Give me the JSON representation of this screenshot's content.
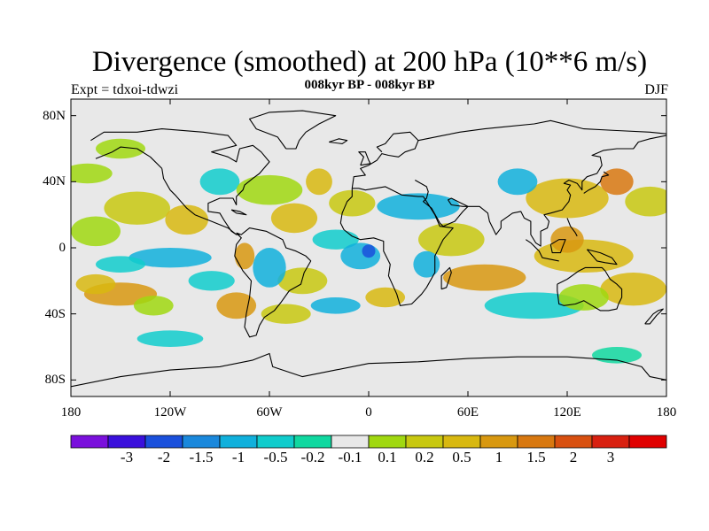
{
  "title": "Divergence (smoothed) at 200 hPa (10**6 m/s)",
  "subtitle": "008kyr BP - 008kyr BP",
  "experiment": "Expt = tdxoi-tdwzi",
  "season": "DJF",
  "map": {
    "projection": "cylindrical equidistant",
    "lon_range": [
      -180,
      180
    ],
    "lat_range": [
      -90,
      90
    ],
    "land_color": "#e8e8e8",
    "coastline_color": "#000000",
    "lat_ticks": [
      {
        "value": 80,
        "label": "80N"
      },
      {
        "value": 40,
        "label": "40N"
      },
      {
        "value": 0,
        "label": "0"
      },
      {
        "value": -40,
        "label": "40S"
      },
      {
        "value": -80,
        "label": "80S"
      }
    ],
    "lon_ticks": [
      {
        "value": -180,
        "label": "180"
      },
      {
        "value": -120,
        "label": "120W"
      },
      {
        "value": -60,
        "label": "60W"
      },
      {
        "value": 0,
        "label": "0"
      },
      {
        "value": 60,
        "label": "60E"
      },
      {
        "value": 120,
        "label": "120E"
      },
      {
        "value": 180,
        "label": "180"
      }
    ]
  },
  "colorbar": {
    "colors": [
      "#7a10dc",
      "#3a10dc",
      "#1a50dc",
      "#1a88dc",
      "#10b0dc",
      "#10cccc",
      "#10d8a0",
      "#e8e8e8",
      "#a0d810",
      "#c8c810",
      "#d8b810",
      "#d89810",
      "#d87810",
      "#d85010",
      "#d82010",
      "#e00000"
    ],
    "labels": [
      "-3",
      "-2",
      "-1.5",
      "-1",
      "-0.5",
      "-0.2",
      "-0.1",
      "0.1",
      "0.2",
      "0.5",
      "1",
      "1.5",
      "2",
      "3"
    ]
  }
}
